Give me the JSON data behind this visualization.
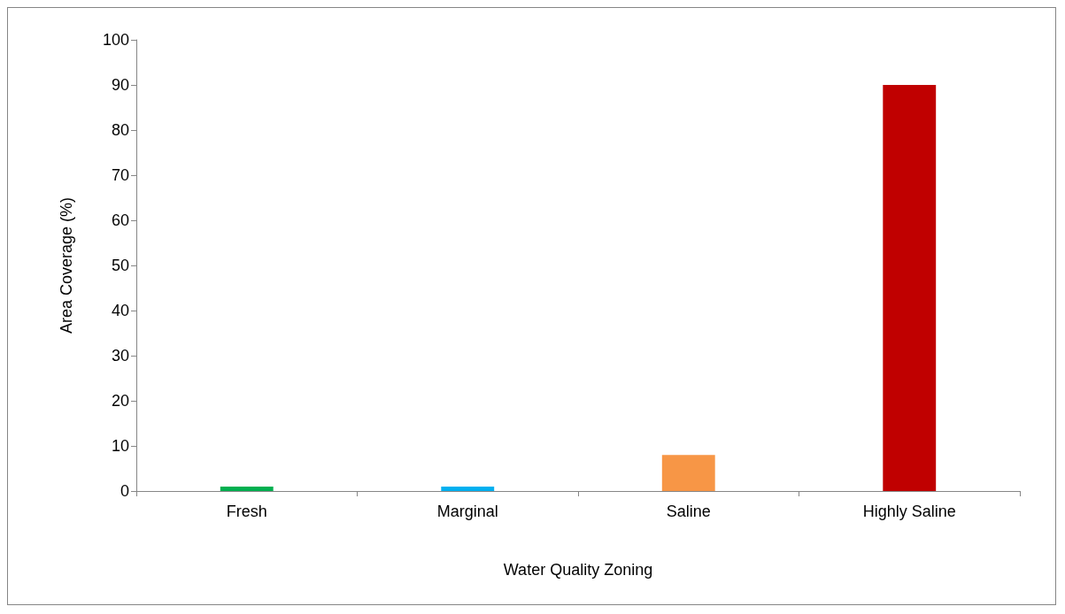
{
  "chart_data": {
    "type": "bar",
    "xlabel": "Water Quality Zoning",
    "ylabel": "Area Coverage (%)",
    "categories": [
      "Fresh",
      "Marginal",
      "Saline",
      "Highly Saline"
    ],
    "values": [
      1,
      1,
      8,
      90
    ],
    "colors": [
      "#00b050",
      "#00b0f0",
      "#f79646",
      "#c00000"
    ],
    "ylim": [
      0,
      100
    ],
    "yticks": [
      0,
      10,
      20,
      30,
      40,
      50,
      60,
      70,
      80,
      90,
      100
    ],
    "grid": false
  }
}
